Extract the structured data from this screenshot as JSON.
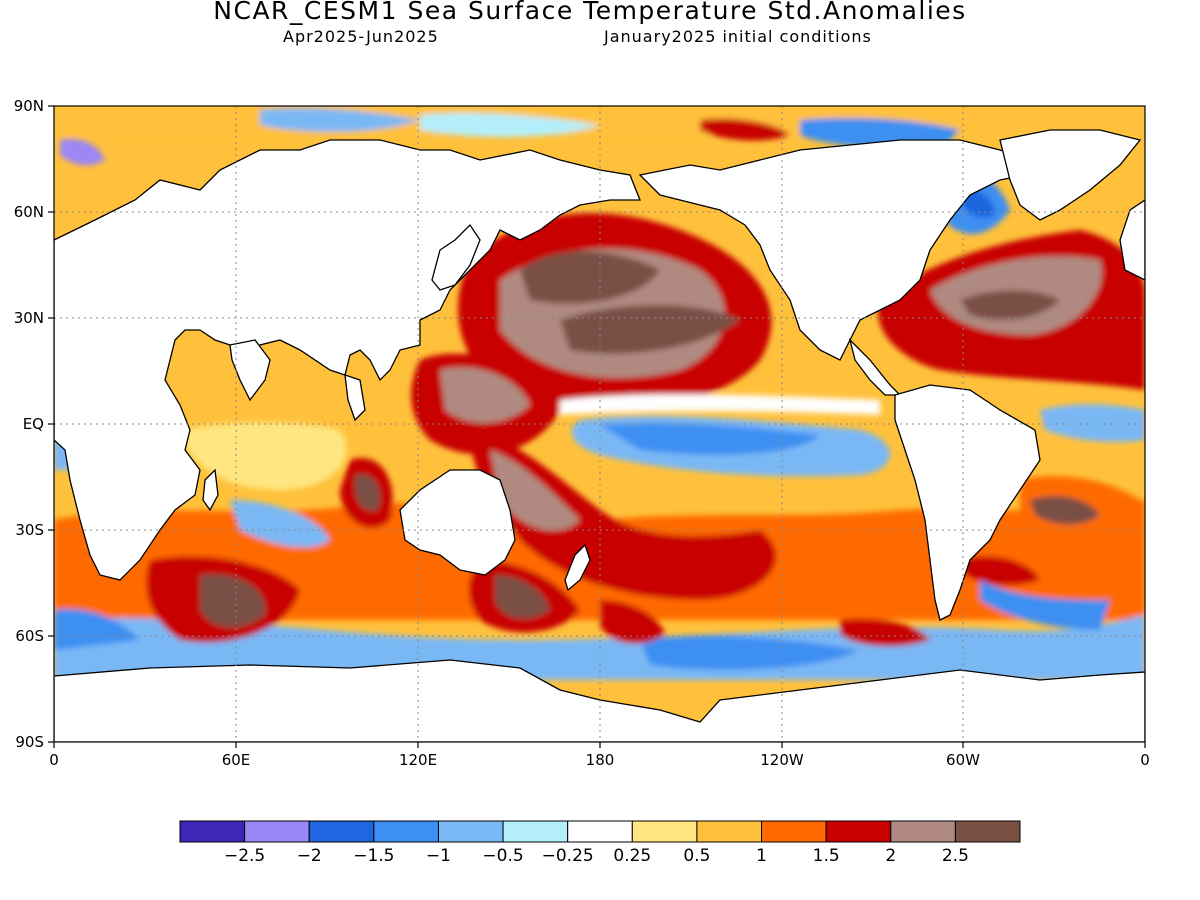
{
  "title": "NCAR_CESM1 Sea Surface Temperature Std.Anomalies",
  "subtitle_left": "Apr2025-Jun2025",
  "subtitle_right": "January2025 initial conditions",
  "map": {
    "lat_labels": [
      "90N",
      "60N",
      "30N",
      "EQ",
      "30S",
      "60S",
      "90S"
    ],
    "lon_labels": [
      "0",
      "60E",
      "120E",
      "180",
      "120W",
      "60W",
      "0"
    ],
    "lat_range": [
      -90,
      90
    ],
    "lon_range": [
      0,
      360
    ],
    "grid": "dotted"
  },
  "colorbar": {
    "colors": [
      "#3c27b8",
      "#9b87f5",
      "#1f66e0",
      "#3d8ff2",
      "#7ab8f5",
      "#b4eefa",
      "#ffffff",
      "#ffe680",
      "#ffc13b",
      "#ff6a00",
      "#c80000",
      "#b08a80",
      "#7a5045"
    ],
    "labels": [
      "-2.5",
      "-2",
      "-1.5",
      "-1",
      "-0.5",
      "-0.25",
      "0.25",
      "0.5",
      "1",
      "1.5",
      "2",
      "2.5"
    ]
  }
}
